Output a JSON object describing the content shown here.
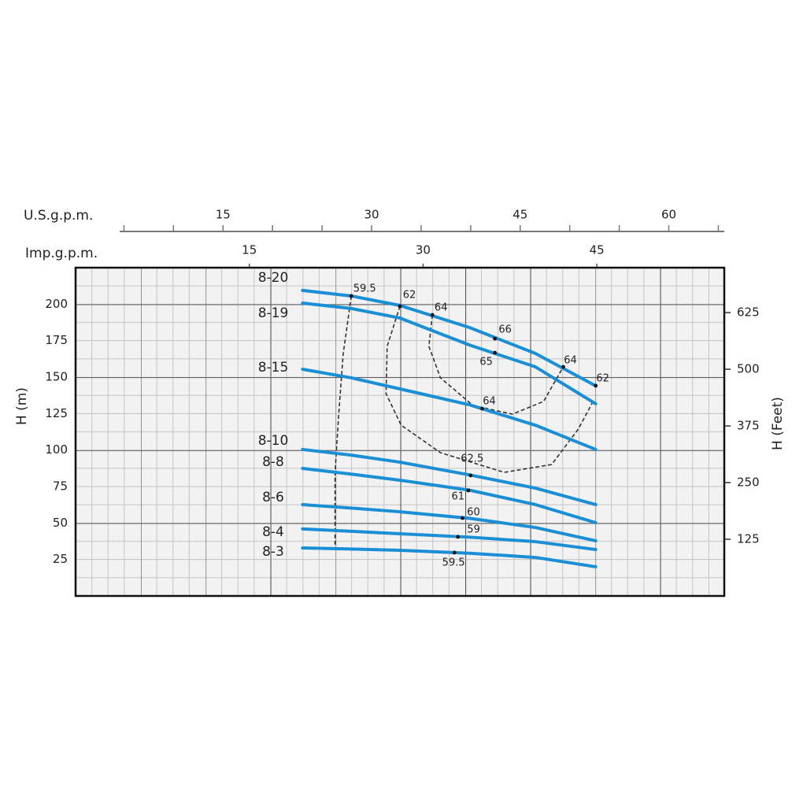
{
  "chart_data": {
    "type": "line",
    "x_label": "Imp.g.p.m.",
    "x2_label": "U.S.g.p.m.",
    "y_label": "H (m)",
    "y2_label": "H (Feet)",
    "xlim": [
      0,
      56
    ],
    "xticks": [
      15,
      30,
      45
    ],
    "x2lim": [
      0,
      65.6
    ],
    "x2ticks": [
      15,
      30,
      45,
      60
    ],
    "x2minor_ticks": [
      5,
      10,
      20,
      25,
      35,
      40,
      50,
      55,
      65
    ],
    "ylim": [
      0,
      225
    ],
    "yticks": [
      25,
      50,
      75,
      100,
      125,
      150,
      175,
      200
    ],
    "y2lim": [
      0,
      724
    ],
    "y2ticks": [
      125,
      250,
      375,
      500,
      625
    ],
    "grid": true,
    "color": "#1a8fd6",
    "x": [
      19.6,
      23.8,
      28.0,
      34.0,
      39.7,
      44.9
    ],
    "series": [
      {
        "name": "8-20",
        "values": [
          209.4,
          205.6,
          199.1,
          184.0,
          166.2,
          144.0
        ]
      },
      {
        "name": "8-19",
        "values": [
          200.7,
          197.0,
          190.5,
          172.0,
          157.0,
          131.7
        ]
      },
      {
        "name": "8-15",
        "values": [
          155.4,
          149.5,
          141.9,
          131.0,
          117.0,
          100.4
        ]
      },
      {
        "name": "8-10",
        "values": [
          100.4,
          96.5,
          91.7,
          83.0,
          73.9,
          62.6
        ]
      },
      {
        "name": "8-8",
        "values": [
          87.4,
          83.5,
          79.3,
          72.5,
          62.6,
          50.2
        ]
      },
      {
        "name": "8-6",
        "values": [
          62.6,
          60.2,
          57.7,
          53.2,
          46.9,
          37.8
        ]
      },
      {
        "name": "8-4",
        "values": [
          45.9,
          44.3,
          42.6,
          40.3,
          37.2,
          31.8
        ]
      },
      {
        "name": "8-3",
        "values": [
          32.9,
          32.2,
          31.3,
          29.3,
          26.4,
          20.0
        ]
      }
    ],
    "efficiency_curves": [
      {
        "x": [
          23.8,
          23.1,
          22.7,
          22.4,
          22.4
        ],
        "y": [
          205.6,
          165.7,
          122.6,
          84.8,
          32.4
        ]
      },
      {
        "x": [
          28.0,
          26.9,
          26.8,
          28.1,
          31.5,
          37.0,
          41.1,
          43.4,
          44.6
        ],
        "y": [
          198.6,
          171.1,
          138.7,
          117.1,
          98.2,
          84.7,
          90.1,
          114.4,
          132.2
        ]
      },
      {
        "x": [
          30.8,
          30.5,
          31.5,
          34.3,
          37.7,
          40.4,
          42.1
        ],
        "y": [
          192.6,
          171.1,
          149.5,
          130.6,
          124.6,
          133.3,
          157.0
        ]
      }
    ],
    "efficiency_points": [
      {
        "x": 23.8,
        "y": 205.6,
        "efficiency": 59.5
      },
      {
        "x": 28.0,
        "y": 198.6,
        "efficiency": 62
      },
      {
        "x": 30.8,
        "y": 192.6,
        "efficiency": 64
      },
      {
        "x": 36.2,
        "y": 176.4,
        "efficiency": 66
      },
      {
        "x": 36.2,
        "y": 166.7,
        "efficiency": 65
      },
      {
        "x": 42.1,
        "y": 157.0,
        "efficiency": 64
      },
      {
        "x": 44.9,
        "y": 144.1,
        "efficiency": 62
      },
      {
        "x": 35.1,
        "y": 128.4,
        "efficiency": 64
      },
      {
        "x": 34.1,
        "y": 82.6,
        "efficiency": 62.5
      },
      {
        "x": 33.9,
        "y": 72.3,
        "efficiency": 61
      },
      {
        "x": 33.4,
        "y": 53.4,
        "efficiency": 60
      },
      {
        "x": 33.0,
        "y": 40.5,
        "efficiency": 59
      },
      {
        "x": 32.7,
        "y": 29.7,
        "efficiency": 59.5
      }
    ]
  }
}
